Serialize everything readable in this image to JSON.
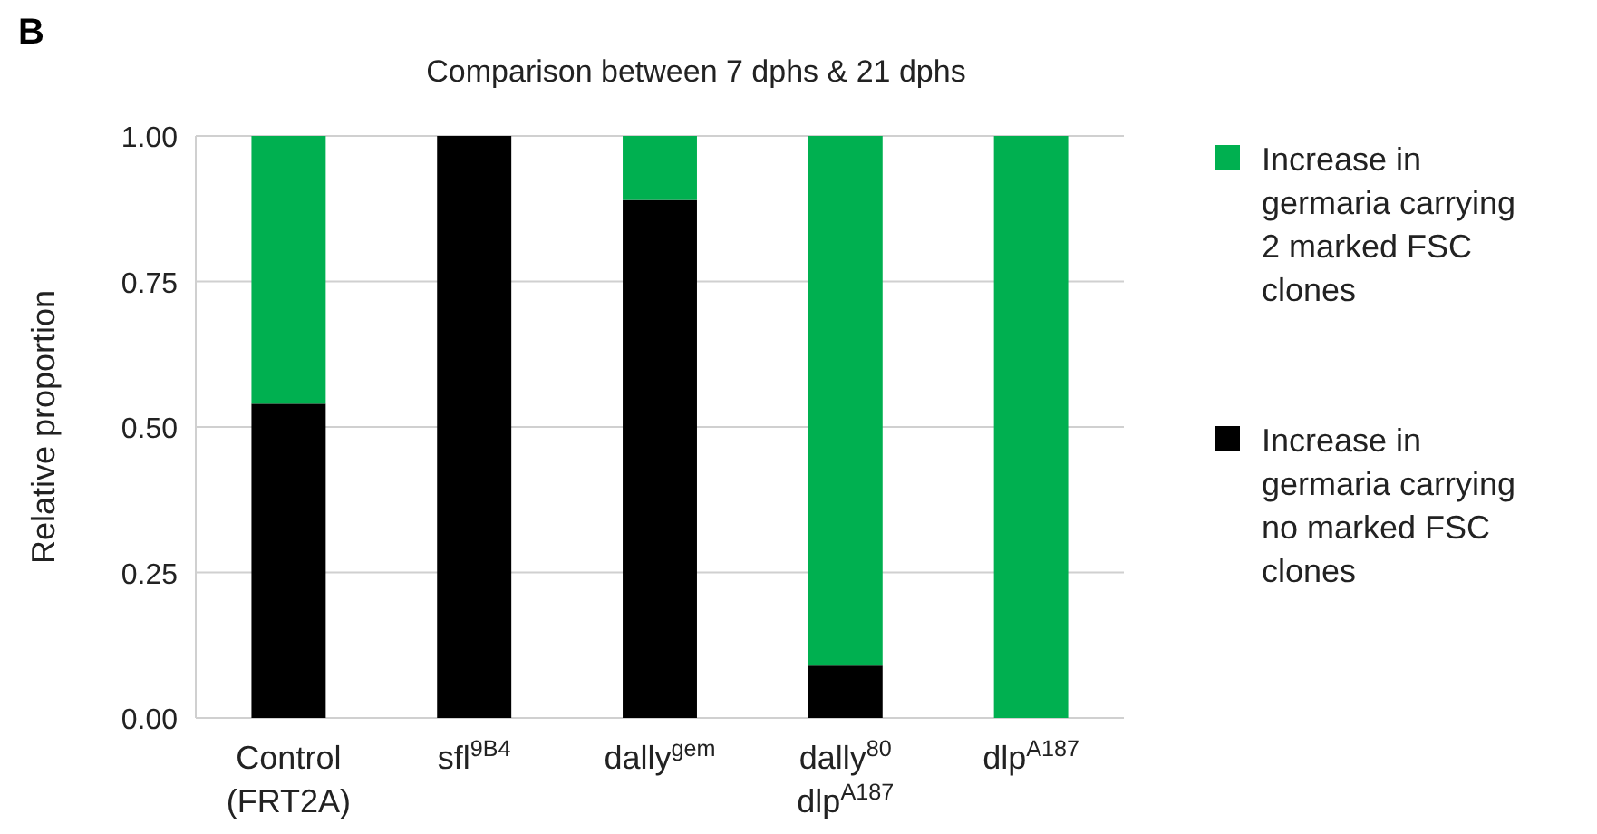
{
  "chart_data": {
    "type": "bar",
    "stacked": true,
    "title": "Comparison between 7 dphs & 21 dphs",
    "ylabel": "Relative proportion",
    "annotations": [
      "B"
    ],
    "categories": [
      "Control\n(FRT2A)",
      "sfl$^{9B4}$",
      "dally$^{gem}$",
      "dally$^{80}$\ndlp$^{A187}$",
      "dlp$^{A187}$"
    ],
    "series": [
      {
        "name": "Increase in germaria carrying no marked FSC clones",
        "color": "#000000",
        "values": [
          0.54,
          1,
          0.89,
          0.09,
          0
        ]
      },
      {
        "name": "Increase in germaria carrying 2 marked FSC clones",
        "color": "#00b050",
        "values": [
          0.46,
          0,
          0.11,
          0.91,
          1
        ]
      }
    ],
    "ylim": [
      0,
      1
    ],
    "yticks": [
      {
        "value": 0,
        "label": "0.00"
      },
      {
        "value": 0.25,
        "label": "0.25"
      },
      {
        "value": 0.5,
        "label": "0.50"
      },
      {
        "value": 0.75,
        "label": "0.75"
      },
      {
        "value": 1,
        "label": "1.00"
      }
    ],
    "grid": "y",
    "legend": "right"
  }
}
